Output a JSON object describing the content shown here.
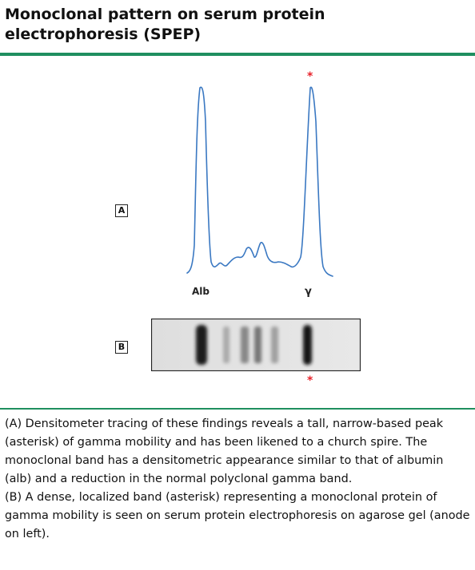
{
  "header": {
    "title_line1": "Monoclonal pattern on serum protein",
    "title_line2": "electrophoresis (SPEP)"
  },
  "figure": {
    "panel_a_label": "A",
    "panel_b_label": "B",
    "alb_label": "Alb",
    "gamma_label": "γ",
    "asterisk": "*",
    "trace_color": "#3a78c2",
    "asterisk_color": "#e8222a",
    "accent_color": "#1f8f5f"
  },
  "caption": {
    "para_a": "(A) Densitometer tracing of these findings reveals a tall, narrow-based peak (asterisk) of gamma mobility and has been likened to a church spire. The monoclonal band has a densitometric appearance similar to that of albumin (alb) and a reduction in the normal polyclonal gamma band.",
    "para_b": "(B) A dense, localized band (asterisk) representing a monoclonal protein of gamma mobility is seen on serum protein electrophoresis on agarose gel (anode on left)."
  }
}
